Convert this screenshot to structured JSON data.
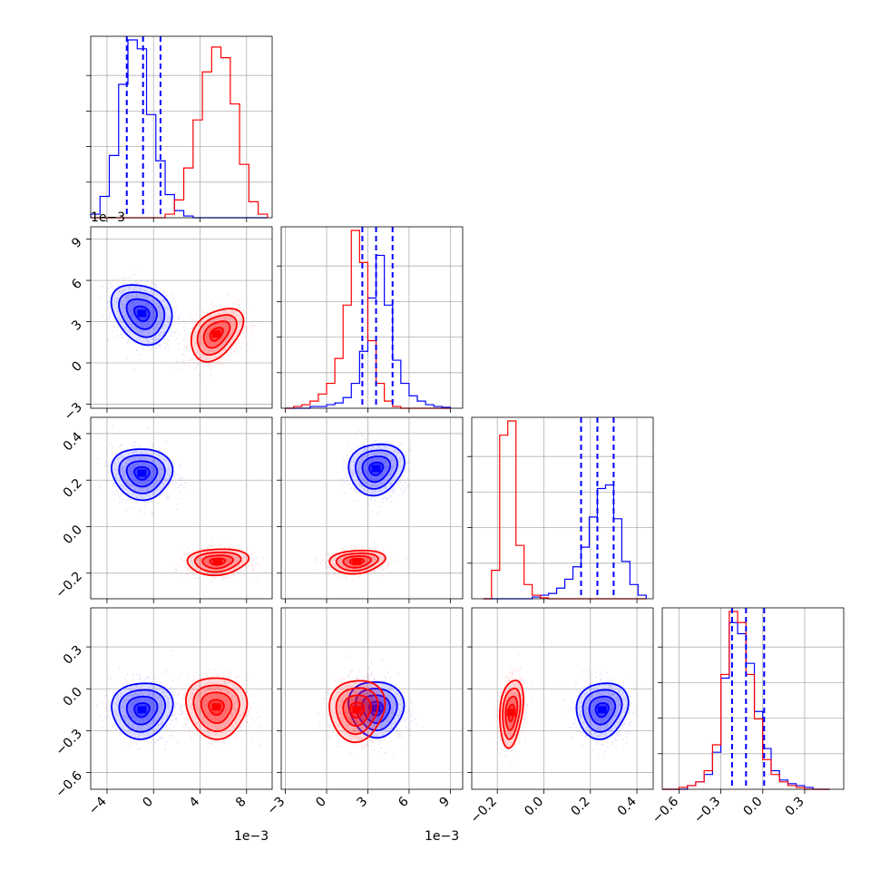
{
  "chart_data": {
    "type": "corner",
    "colors": {
      "A": "#0000ff",
      "B": "#ff0000"
    },
    "grid": true,
    "n_params": 4,
    "params": [
      {
        "index": 0,
        "range": [
          -5.4,
          10.2
        ],
        "ticks": [
          -4,
          0,
          4,
          8
        ],
        "tick_labels": [
          "−4",
          "0",
          "4",
          "8"
        ],
        "offset_text": "1e−3"
      },
      {
        "index": 1,
        "range": [
          -3.3,
          9.9
        ],
        "ticks": [
          -3,
          0,
          3,
          6,
          9
        ],
        "tick_labels": [
          "−3",
          "0",
          "3",
          "6",
          "9"
        ],
        "offset_text": "1e−3"
      },
      {
        "index": 2,
        "range": [
          -0.31,
          0.47
        ],
        "ticks": [
          -0.2,
          0.0,
          0.2,
          0.4
        ],
        "tick_labels": [
          "−0.2",
          "0.0",
          "0.2",
          "0.4"
        ],
        "offset_text": ""
      },
      {
        "index": 3,
        "range": [
          -0.72,
          0.58
        ],
        "ticks": [
          -0.6,
          -0.3,
          0.0,
          0.3
        ],
        "tick_labels": [
          "−0.6",
          "−0.3",
          "0.0",
          "0.3"
        ],
        "offset_text": ""
      }
    ],
    "series": [
      {
        "id": "A",
        "color": "#0000ff",
        "mean": [
          -1.0,
          3.6,
          0.23,
          -0.13
        ],
        "std": [
          1.3,
          1.0,
          0.055,
          0.11
        ],
        "quantiles": [
          [
            -2.3,
            -0.9,
            0.6
          ],
          [
            2.6,
            3.6,
            4.8
          ],
          [
            0.16,
            0.23,
            0.3
          ],
          [
            -0.22,
            -0.12,
            0.01
          ]
        ]
      },
      {
        "id": "B",
        "color": "#ff0000",
        "mean": [
          5.6,
          2.0,
          -0.14,
          -0.15
        ],
        "std": [
          1.1,
          1.0,
          0.03,
          0.11
        ]
      }
    ],
    "histograms": [
      {
        "param": 0,
        "bins": [
          -5.4,
          -4.6,
          -3.8,
          -3.0,
          -2.2,
          -1.4,
          -0.6,
          0.2,
          1.0,
          1.8,
          2.6,
          3.4,
          4.2,
          5.0,
          5.8,
          6.6,
          7.4,
          8.2,
          9.0,
          9.8
        ],
        "A": [
          0.02,
          0.12,
          0.35,
          0.75,
          1.0,
          0.95,
          0.58,
          0.32,
          0.13,
          0.04,
          0.01,
          0,
          0,
          0,
          0,
          0,
          0,
          0,
          0
        ],
        "B": [
          0,
          0,
          0,
          0,
          0,
          0,
          0,
          0,
          0.02,
          0.1,
          0.28,
          0.55,
          0.82,
          0.96,
          0.9,
          0.64,
          0.3,
          0.09,
          0.02
        ]
      },
      {
        "param": 1,
        "bins": [
          -3.0,
          -2.4,
          -1.8,
          -1.2,
          -0.6,
          0.0,
          0.6,
          1.2,
          1.8,
          2.4,
          3.0,
          3.6,
          4.2,
          4.8,
          5.4,
          6.0,
          6.6,
          7.2,
          7.8,
          8.4,
          9.0
        ],
        "A": [
          0,
          0,
          0,
          0.01,
          0.01,
          0.02,
          0.03,
          0.06,
          0.14,
          0.32,
          0.62,
          0.86,
          0.58,
          0.27,
          0.14,
          0.07,
          0.04,
          0.02,
          0.01,
          0.005
        ],
        "B": [
          0,
          0.01,
          0.02,
          0.04,
          0.08,
          0.14,
          0.28,
          0.58,
          1.0,
          0.82,
          0.38,
          0.14,
          0.04,
          0.01,
          0,
          0,
          0,
          0,
          0,
          0
        ]
      },
      {
        "param": 2,
        "bins": [
          -0.26,
          -0.225,
          -0.19,
          -0.155,
          -0.12,
          -0.085,
          -0.05,
          -0.015,
          0.02,
          0.055,
          0.09,
          0.125,
          0.16,
          0.195,
          0.23,
          0.265,
          0.3,
          0.335,
          0.37,
          0.405,
          0.44
        ],
        "A": [
          0,
          0,
          0,
          0,
          0,
          0,
          0.01,
          0.02,
          0.03,
          0.06,
          0.11,
          0.18,
          0.29,
          0.46,
          0.62,
          0.64,
          0.45,
          0.21,
          0.08,
          0.02
        ],
        "B": [
          0,
          0.16,
          0.92,
          1.0,
          0.3,
          0.08,
          0.02,
          0.005,
          0,
          0,
          0,
          0,
          0,
          0,
          0,
          0,
          0,
          0,
          0,
          0
        ]
      },
      {
        "param": 3,
        "bins": [
          -0.72,
          -0.66,
          -0.6,
          -0.54,
          -0.48,
          -0.42,
          -0.36,
          -0.3,
          -0.24,
          -0.18,
          -0.12,
          -0.06,
          0.0,
          0.06,
          0.12,
          0.18,
          0.24,
          0.3,
          0.36,
          0.42,
          0.48
        ],
        "A": [
          0,
          0,
          0,
          0.02,
          0.04,
          0.08,
          0.2,
          0.6,
          0.9,
          0.84,
          0.68,
          0.42,
          0.22,
          0.1,
          0.05,
          0.03,
          0.02,
          0.01,
          0,
          0
        ],
        "B": [
          0,
          0,
          0.01,
          0.02,
          0.04,
          0.1,
          0.24,
          0.62,
          0.96,
          0.9,
          0.62,
          0.38,
          0.16,
          0.08,
          0.04,
          0.02,
          0.01,
          0,
          0,
          0
        ]
      }
    ],
    "pairs": [
      {
        "x": 0,
        "y": 1,
        "A_mean": [
          -1.0,
          3.6
        ],
        "A_std": [
          1.3,
          1.1
        ],
        "A_rho": -0.3,
        "B_mean": [
          5.4,
          2.1
        ],
        "B_std": [
          1.1,
          0.95
        ],
        "B_rho": 0.35
      },
      {
        "x": 0,
        "y": 2,
        "A_mean": [
          -1.0,
          0.23
        ],
        "A_std": [
          1.3,
          0.055
        ],
        "A_rho": -0.1,
        "B_mean": [
          5.5,
          -0.15
        ],
        "B_std": [
          1.3,
          0.028
        ],
        "B_rho": 0.05
      },
      {
        "x": 1,
        "y": 2,
        "A_mean": [
          3.6,
          0.25
        ],
        "A_std": [
          1.0,
          0.055
        ],
        "A_rho": 0.05,
        "B_mean": [
          2.2,
          -0.15
        ],
        "B_std": [
          1.0,
          0.025
        ],
        "B_rho": 0.1
      },
      {
        "x": 0,
        "y": 3,
        "A_mean": [
          -1.0,
          -0.15
        ],
        "A_std": [
          1.3,
          0.1
        ],
        "A_rho": 0.0,
        "B_mean": [
          5.4,
          -0.13
        ],
        "B_std": [
          1.3,
          0.11
        ],
        "B_rho": -0.1
      },
      {
        "x": 1,
        "y": 3,
        "A_mean": [
          3.6,
          -0.14
        ],
        "A_std": [
          1.0,
          0.1
        ],
        "A_rho": -0.1,
        "B_mean": [
          2.2,
          -0.15
        ],
        "B_std": [
          1.0,
          0.11
        ],
        "B_rho": 0.0
      },
      {
        "x": 2,
        "y": 3,
        "A_mean": [
          0.25,
          -0.15
        ],
        "A_std": [
          0.055,
          0.1
        ],
        "A_rho": 0.05,
        "B_mean": [
          -0.14,
          -0.17
        ],
        "B_std": [
          0.025,
          0.12
        ],
        "B_rho": 0.2
      }
    ],
    "contour_levels_sigma": [
      0.5,
      1.0,
      1.5,
      2.0
    ],
    "annotations": [
      "1e−3",
      "1e−3",
      "1e−3"
    ]
  }
}
